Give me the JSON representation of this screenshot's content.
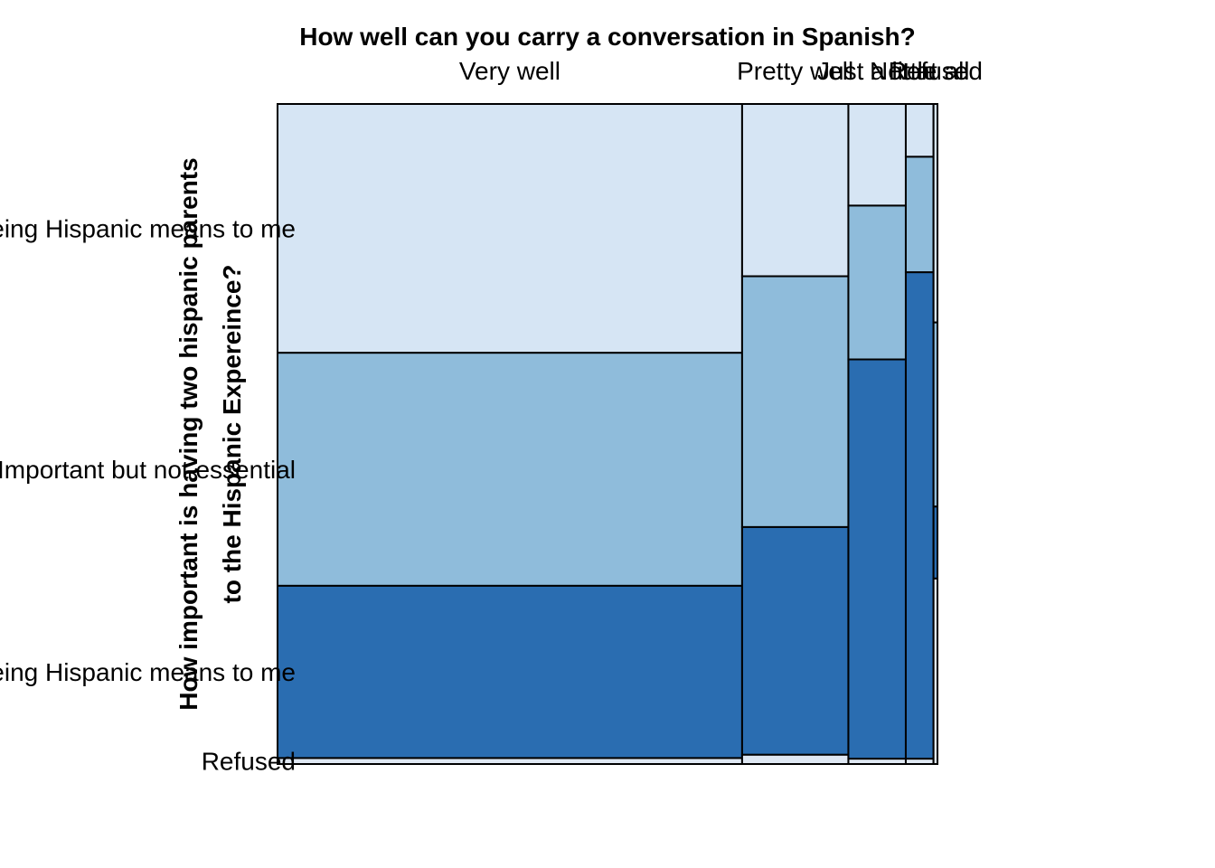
{
  "chart_data": {
    "type": "mosaic",
    "title": "How well can you carry a conversation in Spanish?",
    "ylabel_lines": [
      "How important is having two hispanic parents",
      "to the Hispanic Expereince?"
    ],
    "x_categories": [
      "Very well",
      "Pretty well",
      "Just a little",
      "Not at all",
      "Refused"
    ],
    "x_widths": [
      0.704,
      0.161,
      0.087,
      0.042,
      0.006
    ],
    "y_categories": [
      "Essential part of what being Hispanic means to me",
      "Important but not essential",
      "Not an important part of what being Hispanic means to me",
      "Refused"
    ],
    "y_tick_labels": [
      "Essential part of what being Hispanic means to me",
      "Important but not essential",
      "Not an important part of what being Hispanic means to me",
      "Refused"
    ],
    "y_label_anchor_column": 0,
    "proportions_by_column": [
      [
        0.377,
        0.353,
        0.261,
        0.009
      ],
      [
        0.261,
        0.38,
        0.345,
        0.014
      ],
      [
        0.154,
        0.233,
        0.605,
        0.008
      ],
      [
        0.08,
        0.175,
        0.737,
        0.008
      ],
      [
        0.331,
        0.279,
        0.109,
        0.281
      ]
    ],
    "colors": {
      "Essential part of what being Hispanic means to me": "#d6e5f4",
      "Important but not essential": "#8fbcdb",
      "Not an important part of what being Hispanic means to me": "#2a6db1",
      "Refused": "#dfe8f3"
    }
  }
}
